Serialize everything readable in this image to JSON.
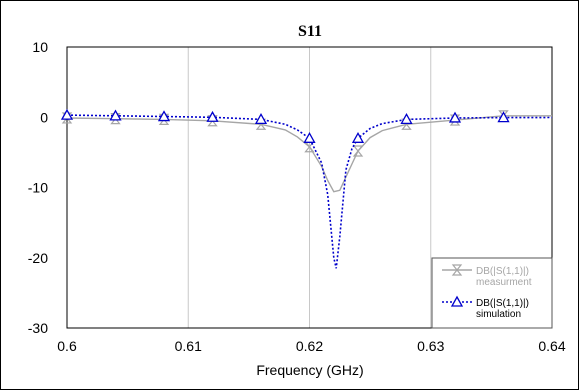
{
  "chart_data": {
    "type": "line",
    "title": "S11",
    "xlabel": "Frequency (GHz)",
    "ylabel": "",
    "xlim": [
      0.6,
      0.64
    ],
    "ylim": [
      -30,
      10
    ],
    "xticks": [
      "0.6",
      "0.61",
      "0.62",
      "0.63",
      "0.64"
    ],
    "yticks": [
      "10",
      "0",
      "-10",
      "-20",
      "-30"
    ],
    "grid": "vertical",
    "legend_position": "bottom-right",
    "series": [
      {
        "name": "DB(|S(1,1)|)",
        "name_sub": "measurment",
        "color": "#a6a6a6",
        "style": "solid",
        "marker": "hourglass",
        "x": [
          0.6,
          0.604,
          0.608,
          0.612,
          0.616,
          0.618,
          0.619,
          0.62,
          0.621,
          0.6215,
          0.622,
          0.6225,
          0.623,
          0.624,
          0.625,
          0.626,
          0.628,
          0.632,
          0.636,
          0.64
        ],
        "y": [
          -0.1,
          -0.2,
          -0.3,
          -0.5,
          -1.0,
          -1.8,
          -2.8,
          -4.2,
          -7.0,
          -9.0,
          -10.6,
          -10.4,
          -8.5,
          -4.8,
          -2.9,
          -1.9,
          -1.0,
          -0.4,
          0.2,
          0.2
        ],
        "marker_x": [
          0.6,
          0.604,
          0.608,
          0.612,
          0.616,
          0.62,
          0.624,
          0.628,
          0.632,
          0.636
        ],
        "marker_y": [
          -0.1,
          -0.2,
          -0.3,
          -0.5,
          -1.0,
          -4.2,
          -4.8,
          -1.0,
          -0.4,
          0.2
        ]
      },
      {
        "name": "DB(|S(1,1)|)",
        "name_sub": "simulation",
        "color": "#0000cc",
        "style": "dotted",
        "marker": "triangle",
        "x": [
          0.6,
          0.604,
          0.608,
          0.612,
          0.616,
          0.618,
          0.619,
          0.62,
          0.621,
          0.6215,
          0.622,
          0.6222,
          0.6225,
          0.623,
          0.6235,
          0.624,
          0.625,
          0.626,
          0.628,
          0.632,
          0.636,
          0.64
        ],
        "y": [
          0.3,
          0.2,
          0.1,
          0.0,
          -0.3,
          -1.0,
          -1.8,
          -3.0,
          -6.5,
          -11.0,
          -20.0,
          -21.5,
          -17.0,
          -7.5,
          -4.5,
          -3.0,
          -1.6,
          -0.9,
          -0.3,
          -0.1,
          -0.05,
          -0.03
        ],
        "marker_x": [
          0.6,
          0.604,
          0.608,
          0.612,
          0.616,
          0.62,
          0.624,
          0.628,
          0.632,
          0.636
        ],
        "marker_y": [
          0.3,
          0.2,
          0.1,
          0.0,
          -0.3,
          -3.0,
          -3.0,
          -0.3,
          -0.1,
          -0.05
        ]
      }
    ]
  }
}
